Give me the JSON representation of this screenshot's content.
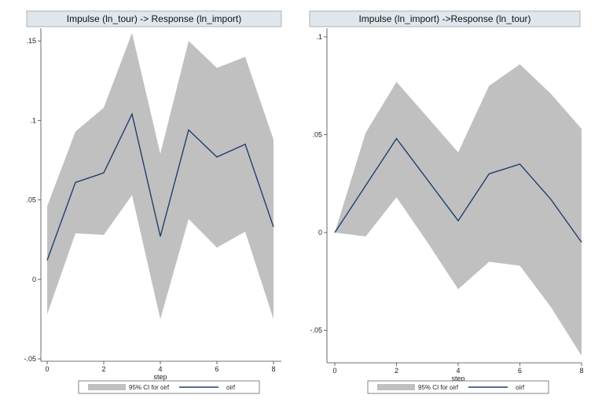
{
  "chart_data": [
    {
      "type": "area",
      "title": "Impulse (ln_tour) -> Response (ln_import)",
      "xlabel": "step",
      "ylabel": "",
      "x": [
        0,
        1,
        2,
        3,
        4,
        5,
        6,
        7,
        8
      ],
      "xticks": [
        0,
        2,
        4,
        6,
        8
      ],
      "xlim": [
        0,
        8
      ],
      "ylim": [
        -0.05,
        0.155
      ],
      "yticks": [
        -0.05,
        0,
        0.05,
        0.1,
        0.15
      ],
      "ytick_labels": [
        "-.05",
        "0",
        ".05",
        ".1",
        ".15"
      ],
      "grid": false,
      "legend_position": "bottom",
      "series": [
        {
          "name": "95% CI for oirf",
          "kind": "band",
          "color": "#c0c0c0",
          "lower": [
            -0.022,
            0.029,
            0.028,
            0.053,
            -0.025,
            0.038,
            0.02,
            0.03,
            -0.025
          ],
          "upper": [
            0.046,
            0.093,
            0.108,
            0.155,
            0.079,
            0.15,
            0.133,
            0.14,
            0.088
          ]
        },
        {
          "name": "oirf",
          "kind": "line",
          "color": "#1f3f6e",
          "values": [
            0.012,
            0.061,
            0.067,
            0.104,
            0.027,
            0.094,
            0.077,
            0.085,
            0.033
          ]
        }
      ]
    },
    {
      "type": "area",
      "title": "Impulse (ln_import) ->Response (ln_tour)",
      "xlabel": "step",
      "ylabel": "",
      "x": [
        0,
        1,
        2,
        3,
        4,
        5,
        6,
        7,
        8
      ],
      "xticks": [
        0,
        2,
        4,
        6,
        8
      ],
      "xlim": [
        0,
        8
      ],
      "ylim": [
        -0.065,
        0.102
      ],
      "yticks": [
        -0.05,
        0,
        0.05,
        0.1
      ],
      "ytick_labels": [
        "-.05",
        "0",
        ".05",
        ".1"
      ],
      "grid": false,
      "legend_position": "bottom",
      "series": [
        {
          "name": "95% CI for oirf",
          "kind": "band",
          "color": "#c0c0c0",
          "lower": [
            0.0,
            -0.002,
            0.018,
            -0.005,
            -0.029,
            -0.015,
            -0.017,
            -0.038,
            -0.063
          ],
          "upper": [
            0.0,
            0.051,
            0.077,
            0.059,
            0.041,
            0.075,
            0.086,
            0.071,
            0.053
          ]
        },
        {
          "name": "oirf",
          "kind": "line",
          "color": "#1f3f6e",
          "values": [
            0.0,
            0.024,
            0.048,
            0.027,
            0.006,
            0.03,
            0.035,
            0.017,
            -0.005
          ]
        }
      ]
    }
  ]
}
